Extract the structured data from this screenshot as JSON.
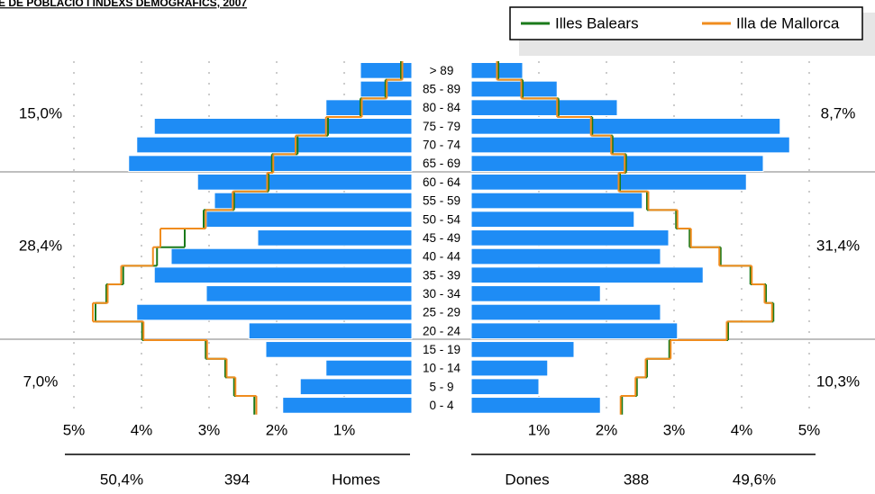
{
  "chart_data": {
    "type": "pyramid",
    "title": "E DE POBLACIÓ I ÍNDEXS DEMOGRÀFICS, 2007",
    "categories": [
      "> 89",
      "85 - 89",
      "80 - 84",
      "75 - 79",
      "70 - 74",
      "65 - 69",
      "60 - 64",
      "55 - 59",
      "50 - 54",
      "45 - 49",
      "40 - 44",
      "35 - 39",
      "30 - 34",
      "25 - 29",
      "20 - 24",
      "15 - 19",
      "10 - 14",
      "5 - 9",
      "0 - 4"
    ],
    "bar_color": "#1e8cf5",
    "left": {
      "values": [
        0.76,
        0.76,
        1.27,
        3.81,
        4.07,
        4.19,
        3.17,
        2.92,
        3.04,
        2.28,
        3.56,
        3.81,
        3.04,
        4.07,
        2.41,
        2.16,
        1.27,
        1.65,
        1.91
      ],
      "series": [
        {
          "name": "Illes Balears",
          "color": "#1a7a1a",
          "values": [
            0.16,
            0.39,
            0.76,
            1.24,
            1.69,
            2.07,
            2.12,
            2.63,
            3.08,
            3.36,
            3.77,
            4.27,
            4.52,
            4.68,
            3.99,
            3.05,
            2.76,
            2.63,
            2.33
          ]
        },
        {
          "name": "Illa de Mallorca",
          "color": "#f08c1e",
          "values": [
            0.14,
            0.37,
            0.74,
            1.27,
            1.72,
            2.05,
            2.14,
            2.65,
            3.05,
            3.72,
            3.83,
            4.3,
            4.5,
            4.72,
            3.97,
            3.03,
            2.74,
            2.61,
            2.3
          ]
        }
      ],
      "xlim": [
        0,
        5
      ],
      "xticks": [
        {
          "value": 5,
          "label": "5%"
        },
        {
          "value": 4,
          "label": "4%"
        },
        {
          "value": 3,
          "label": "3%"
        },
        {
          "value": 2,
          "label": "2%"
        },
        {
          "value": 1,
          "label": "1%"
        }
      ],
      "group_labels": [
        "15,0%",
        "28,4%",
        "7,0%"
      ],
      "footer": [
        "50,4%",
        "394",
        "Homes"
      ]
    },
    "right": {
      "values": [
        0.76,
        1.27,
        2.16,
        4.57,
        4.71,
        4.32,
        4.07,
        2.53,
        2.41,
        2.92,
        2.8,
        3.43,
        1.91,
        2.8,
        3.05,
        1.52,
        1.13,
        1.0,
        1.91
      ],
      "series": [
        {
          "name": "Illes Balears",
          "color": "#1a7a1a",
          "values": [
            0.4,
            0.76,
            1.29,
            1.79,
            2.09,
            2.29,
            2.2,
            2.6,
            3.03,
            3.23,
            3.69,
            4.13,
            4.36,
            4.47,
            3.8,
            2.93,
            2.6,
            2.45,
            2.23
          ]
        },
        {
          "name": "Illa de Mallorca",
          "color": "#f08c1e",
          "values": [
            0.38,
            0.74,
            1.27,
            1.77,
            2.07,
            2.27,
            2.18,
            2.62,
            3.05,
            3.25,
            3.67,
            4.15,
            4.34,
            4.45,
            3.78,
            2.95,
            2.58,
            2.43,
            2.21
          ]
        }
      ],
      "xlim": [
        0,
        5
      ],
      "xticks": [
        {
          "value": 1,
          "label": "1%"
        },
        {
          "value": 2,
          "label": "2%"
        },
        {
          "value": 3,
          "label": "3%"
        },
        {
          "value": 4,
          "label": "4%"
        },
        {
          "value": 5,
          "label": "5%"
        }
      ],
      "group_labels": [
        "8,7%",
        "31,4%",
        "10,3%"
      ],
      "footer": [
        "Dones",
        "388",
        "49,6%"
      ]
    },
    "legend": "top-right"
  }
}
